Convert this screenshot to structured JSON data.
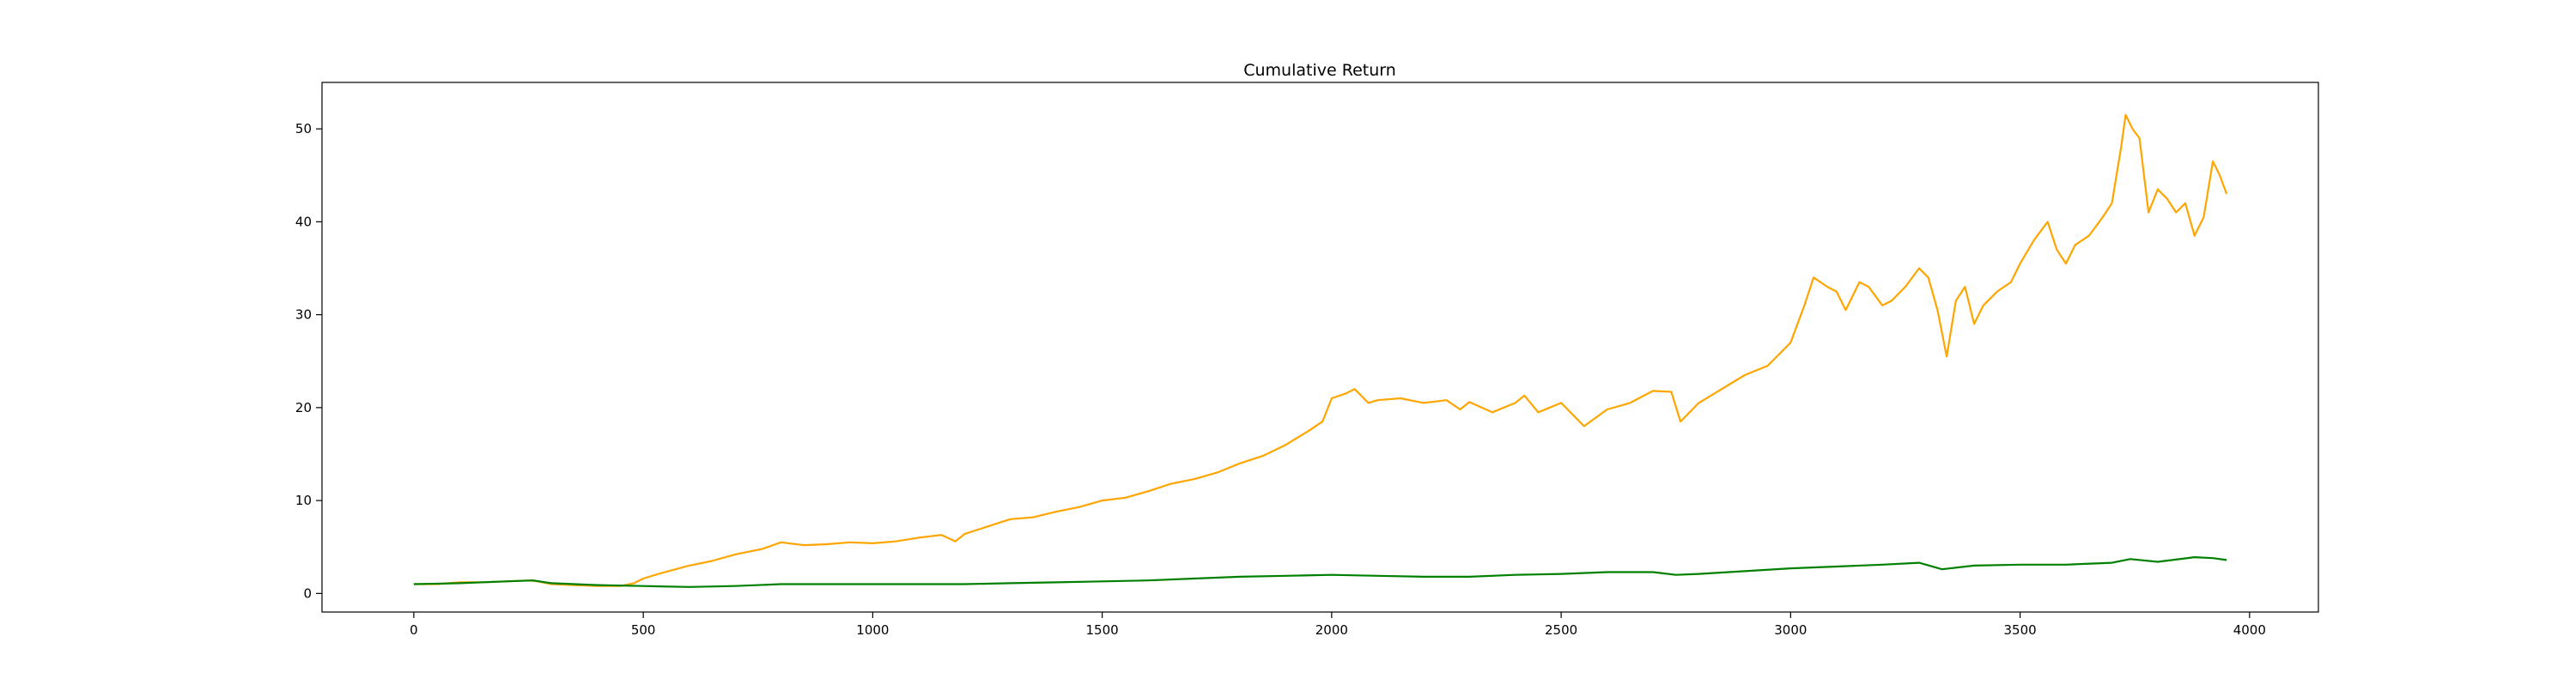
{
  "chart_data": {
    "type": "line",
    "title": "Cumulative Return",
    "xlabel": "",
    "ylabel": "",
    "xlim": [
      -200,
      4150
    ],
    "ylim": [
      -2,
      55
    ],
    "xticks": [
      0,
      500,
      1000,
      1500,
      2000,
      2500,
      3000,
      3500,
      4000
    ],
    "yticks": [
      0,
      10,
      20,
      30,
      40,
      50
    ],
    "grid": false,
    "legend": "none",
    "series": [
      {
        "color": "#ffa500",
        "points": [
          [
            0,
            1.0
          ],
          [
            50,
            1.0
          ],
          [
            100,
            1.2
          ],
          [
            150,
            1.2
          ],
          [
            200,
            1.3
          ],
          [
            250,
            1.4
          ],
          [
            270,
            1.3
          ],
          [
            300,
            1.0
          ],
          [
            350,
            0.9
          ],
          [
            400,
            0.8
          ],
          [
            450,
            0.8
          ],
          [
            480,
            1.1
          ],
          [
            500,
            1.6
          ],
          [
            540,
            2.2
          ],
          [
            600,
            3.0
          ],
          [
            650,
            3.5
          ],
          [
            700,
            4.2
          ],
          [
            760,
            4.8
          ],
          [
            800,
            5.5
          ],
          [
            850,
            5.2
          ],
          [
            900,
            5.3
          ],
          [
            950,
            5.5
          ],
          [
            1000,
            5.4
          ],
          [
            1050,
            5.6
          ],
          [
            1100,
            6.0
          ],
          [
            1150,
            6.3
          ],
          [
            1180,
            5.6
          ],
          [
            1200,
            6.4
          ],
          [
            1250,
            7.2
          ],
          [
            1300,
            8.0
          ],
          [
            1350,
            8.2
          ],
          [
            1400,
            8.8
          ],
          [
            1450,
            9.3
          ],
          [
            1500,
            10.0
          ],
          [
            1550,
            10.3
          ],
          [
            1600,
            11.0
          ],
          [
            1650,
            11.8
          ],
          [
            1700,
            12.3
          ],
          [
            1750,
            13.0
          ],
          [
            1800,
            14.0
          ],
          [
            1850,
            14.8
          ],
          [
            1900,
            16.0
          ],
          [
            1950,
            17.5
          ],
          [
            1980,
            18.5
          ],
          [
            2000,
            21.0
          ],
          [
            2030,
            21.5
          ],
          [
            2050,
            22.0
          ],
          [
            2080,
            20.5
          ],
          [
            2100,
            20.8
          ],
          [
            2150,
            21.0
          ],
          [
            2200,
            20.5
          ],
          [
            2250,
            20.8
          ],
          [
            2280,
            19.8
          ],
          [
            2300,
            20.6
          ],
          [
            2350,
            19.5
          ],
          [
            2400,
            20.5
          ],
          [
            2420,
            21.3
          ],
          [
            2450,
            19.5
          ],
          [
            2500,
            20.5
          ],
          [
            2550,
            18.0
          ],
          [
            2600,
            19.8
          ],
          [
            2650,
            20.5
          ],
          [
            2700,
            21.8
          ],
          [
            2740,
            21.7
          ],
          [
            2760,
            18.5
          ],
          [
            2800,
            20.5
          ],
          [
            2850,
            22.0
          ],
          [
            2900,
            23.5
          ],
          [
            2950,
            24.5
          ],
          [
            3000,
            27.0
          ],
          [
            3030,
            31.0
          ],
          [
            3050,
            34.0
          ],
          [
            3080,
            33.0
          ],
          [
            3100,
            32.5
          ],
          [
            3120,
            30.5
          ],
          [
            3150,
            33.5
          ],
          [
            3170,
            33.0
          ],
          [
            3200,
            31.0
          ],
          [
            3220,
            31.5
          ],
          [
            3250,
            33.0
          ],
          [
            3280,
            35.0
          ],
          [
            3300,
            34.0
          ],
          [
            3320,
            30.5
          ],
          [
            3340,
            25.5
          ],
          [
            3360,
            31.5
          ],
          [
            3380,
            33.0
          ],
          [
            3400,
            29.0
          ],
          [
            3420,
            31.0
          ],
          [
            3450,
            32.5
          ],
          [
            3480,
            33.5
          ],
          [
            3500,
            35.5
          ],
          [
            3530,
            38.0
          ],
          [
            3560,
            40.0
          ],
          [
            3580,
            37.0
          ],
          [
            3600,
            35.5
          ],
          [
            3620,
            37.5
          ],
          [
            3650,
            38.5
          ],
          [
            3680,
            40.5
          ],
          [
            3700,
            42.0
          ],
          [
            3720,
            48.0
          ],
          [
            3730,
            51.5
          ],
          [
            3745,
            50.0
          ],
          [
            3760,
            49.0
          ],
          [
            3780,
            41.0
          ],
          [
            3800,
            43.5
          ],
          [
            3820,
            42.5
          ],
          [
            3840,
            41.0
          ],
          [
            3860,
            42.0
          ],
          [
            3880,
            38.5
          ],
          [
            3900,
            40.5
          ],
          [
            3920,
            46.5
          ],
          [
            3935,
            45.0
          ],
          [
            3950,
            43.0
          ]
        ]
      },
      {
        "color": "#008000",
        "points": [
          [
            0,
            1.0
          ],
          [
            100,
            1.1
          ],
          [
            200,
            1.3
          ],
          [
            260,
            1.4
          ],
          [
            300,
            1.1
          ],
          [
            400,
            0.9
          ],
          [
            500,
            0.8
          ],
          [
            600,
            0.7
          ],
          [
            700,
            0.8
          ],
          [
            800,
            1.0
          ],
          [
            900,
            1.0
          ],
          [
            1000,
            1.0
          ],
          [
            1100,
            1.0
          ],
          [
            1200,
            1.0
          ],
          [
            1300,
            1.1
          ],
          [
            1400,
            1.2
          ],
          [
            1500,
            1.3
          ],
          [
            1600,
            1.4
          ],
          [
            1700,
            1.6
          ],
          [
            1800,
            1.8
          ],
          [
            1900,
            1.9
          ],
          [
            2000,
            2.0
          ],
          [
            2100,
            1.9
          ],
          [
            2200,
            1.8
          ],
          [
            2300,
            1.8
          ],
          [
            2400,
            2.0
          ],
          [
            2500,
            2.1
          ],
          [
            2600,
            2.3
          ],
          [
            2700,
            2.3
          ],
          [
            2750,
            2.0
          ],
          [
            2800,
            2.1
          ],
          [
            2900,
            2.4
          ],
          [
            3000,
            2.7
          ],
          [
            3100,
            2.9
          ],
          [
            3200,
            3.1
          ],
          [
            3280,
            3.3
          ],
          [
            3330,
            2.6
          ],
          [
            3400,
            3.0
          ],
          [
            3500,
            3.1
          ],
          [
            3600,
            3.1
          ],
          [
            3700,
            3.3
          ],
          [
            3740,
            3.7
          ],
          [
            3800,
            3.4
          ],
          [
            3880,
            3.9
          ],
          [
            3920,
            3.8
          ],
          [
            3950,
            3.6
          ]
        ]
      }
    ]
  }
}
